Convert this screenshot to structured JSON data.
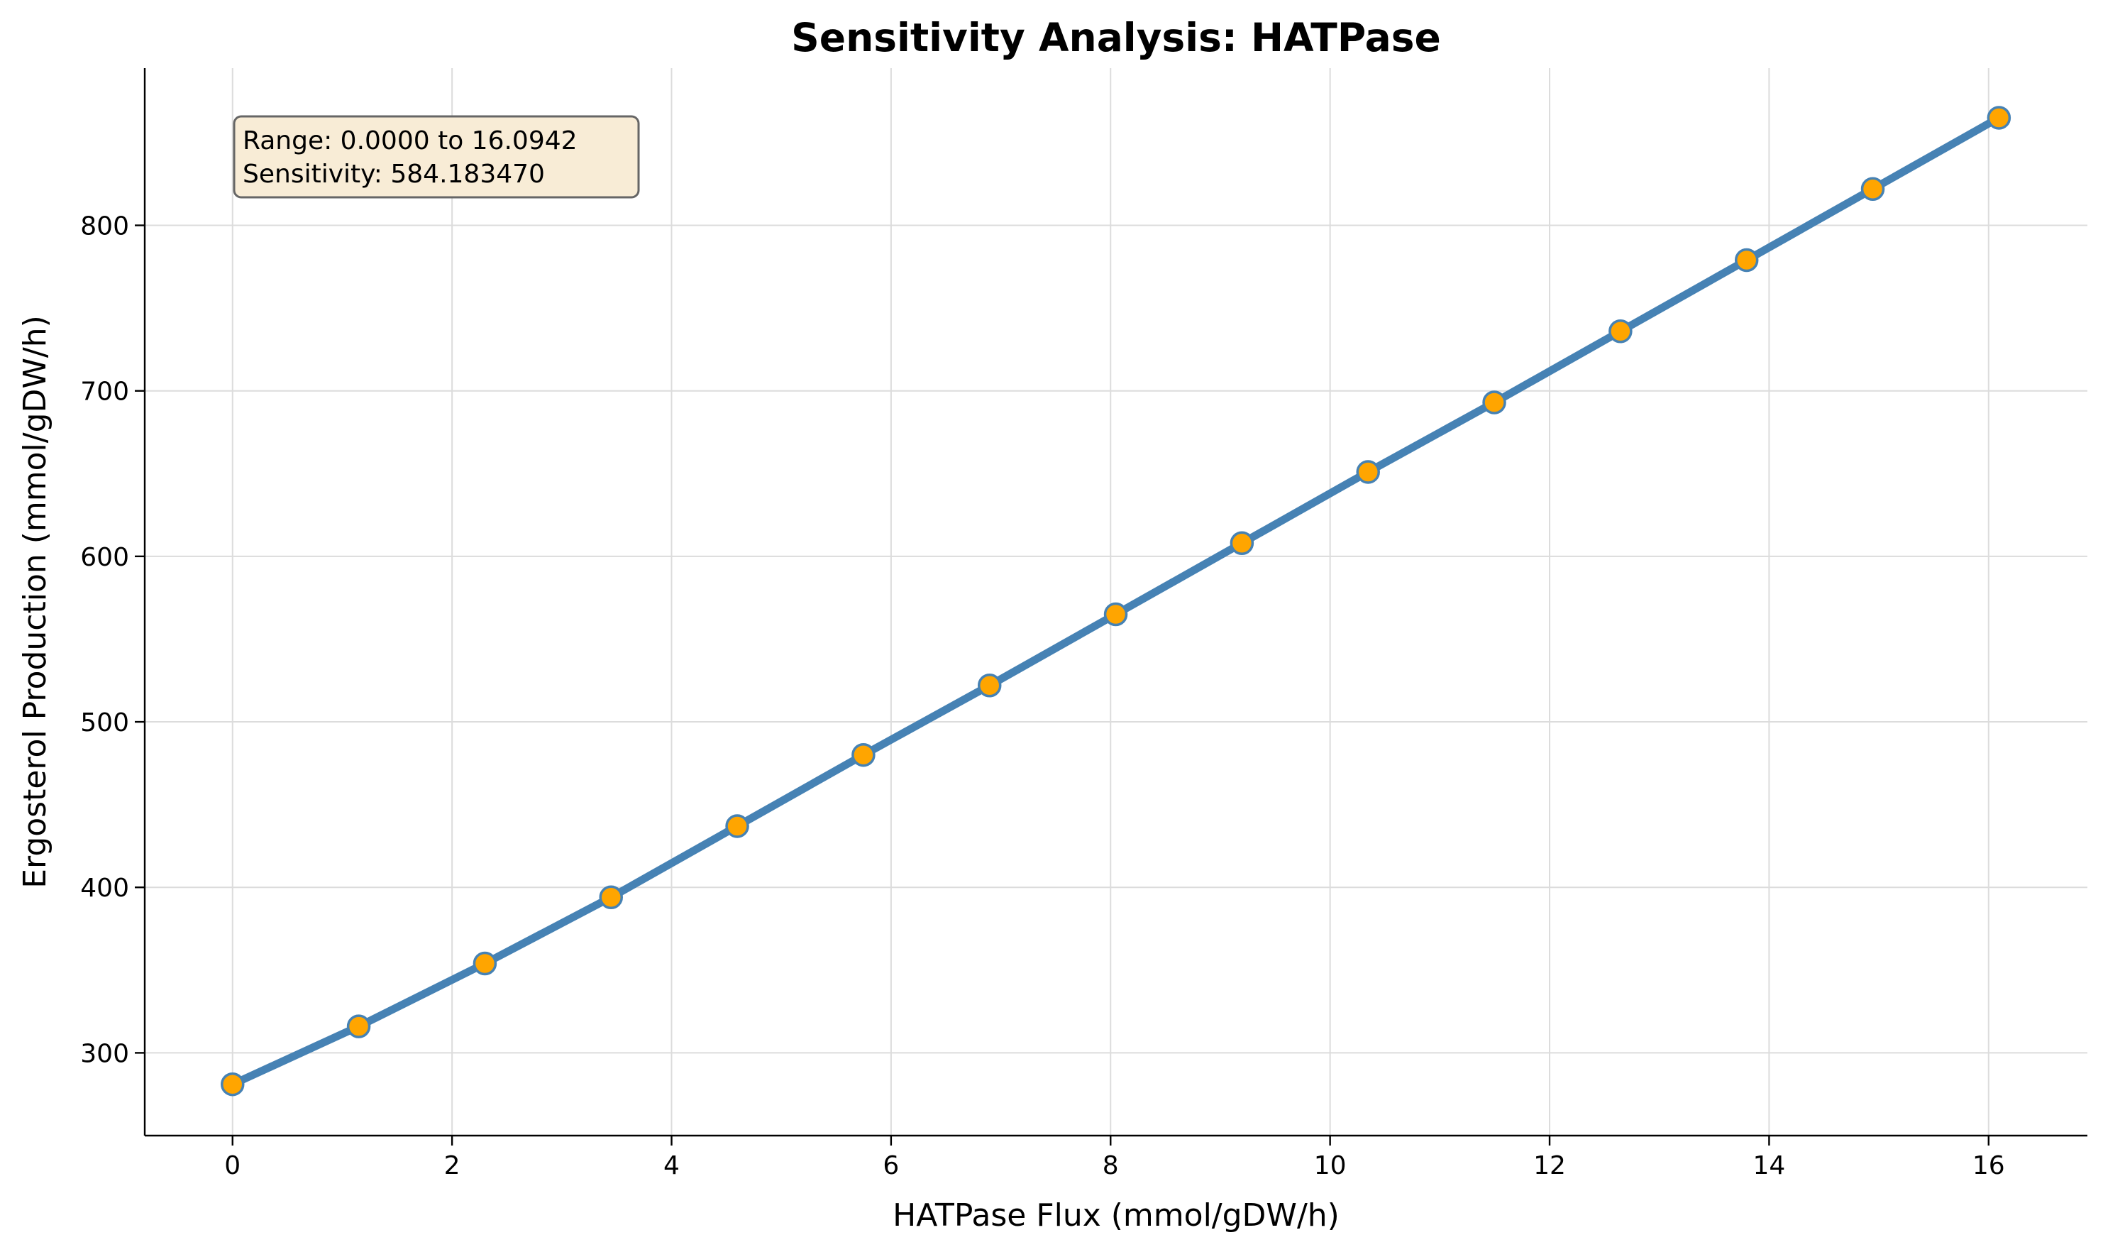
{
  "chart_data": {
    "type": "line",
    "title": "Sensitivity Analysis: HATPase",
    "xlabel": "HATPase Flux (mmol/gDW/h)",
    "ylabel": "Ergosterol Production (mmol/gDW/h)",
    "xlim": [
      -0.8,
      16.9
    ],
    "ylim": [
      250,
      895
    ],
    "xticks": [
      "0",
      "2",
      "4",
      "6",
      "8",
      "10",
      "12",
      "14",
      "16"
    ],
    "yticks": [
      "300",
      "400",
      "500",
      "600",
      "700",
      "800"
    ],
    "grid": true,
    "series": [
      {
        "x": [
          0.0,
          1.1496,
          2.2992,
          3.4488,
          4.5984,
          5.748,
          6.8975,
          8.0471,
          9.1967,
          10.3463,
          11.4959,
          12.6455,
          13.7951,
          14.9446,
          16.0942
        ],
        "y": [
          281,
          316,
          354,
          394,
          437,
          480,
          522,
          565,
          608,
          651,
          693,
          736,
          779,
          822,
          865
        ]
      }
    ],
    "annotation": {
      "lines": [
        "Range: 0.0000 to 16.0942",
        "Sensitivity: 584.183470"
      ],
      "position": "top-left"
    },
    "colors": {
      "line": "#4682b4",
      "marker_fill": "#ffa500",
      "marker_edge": "#4682b4",
      "annotation_bg": "#f8ecd6",
      "annotation_border": "#666666"
    }
  }
}
